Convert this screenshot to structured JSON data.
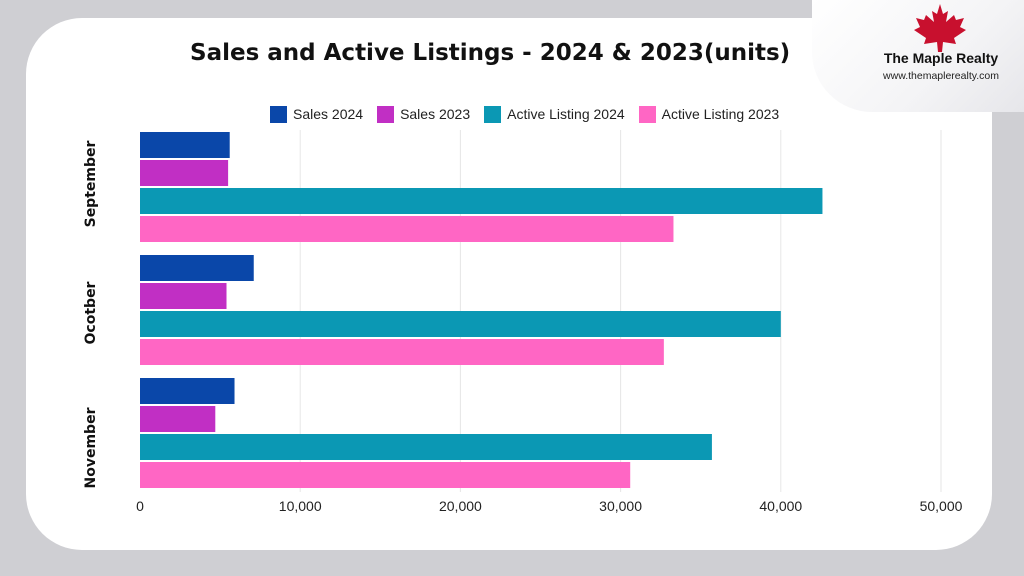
{
  "brand": {
    "name": "The Maple Realty",
    "url": "www.themaplerealty.com",
    "logo_icon": "maple-leaf-icon",
    "logo_color": "#c8102e"
  },
  "chart_data": {
    "type": "bar",
    "orientation": "horizontal",
    "title": "Sales and Active Listings - 2024 & 2023(units)",
    "categories": [
      "September",
      "Ocotber",
      "November"
    ],
    "series": [
      {
        "name": "Sales 2024",
        "color": "#0a47a9",
        "values": [
          5600,
          7100,
          5900
        ]
      },
      {
        "name": "Sales 2023",
        "color": "#c12fc4",
        "values": [
          5500,
          5400,
          4700
        ]
      },
      {
        "name": "Active Listing 2024",
        "color": "#0b98b4",
        "values": [
          42600,
          40000,
          35700
        ]
      },
      {
        "name": "Active Listing 2023",
        "color": "#ff66c4",
        "values": [
          33300,
          32700,
          30600
        ]
      }
    ],
    "xlim": [
      0,
      50000
    ],
    "xticks": [
      0,
      10000,
      20000,
      30000,
      40000,
      50000
    ],
    "xtick_labels": [
      "0",
      "10,000",
      "20,000",
      "30,000",
      "40,000",
      "50,000"
    ],
    "xlabel": "",
    "ylabel": "",
    "grid": "vertical",
    "legend_position": "top"
  }
}
